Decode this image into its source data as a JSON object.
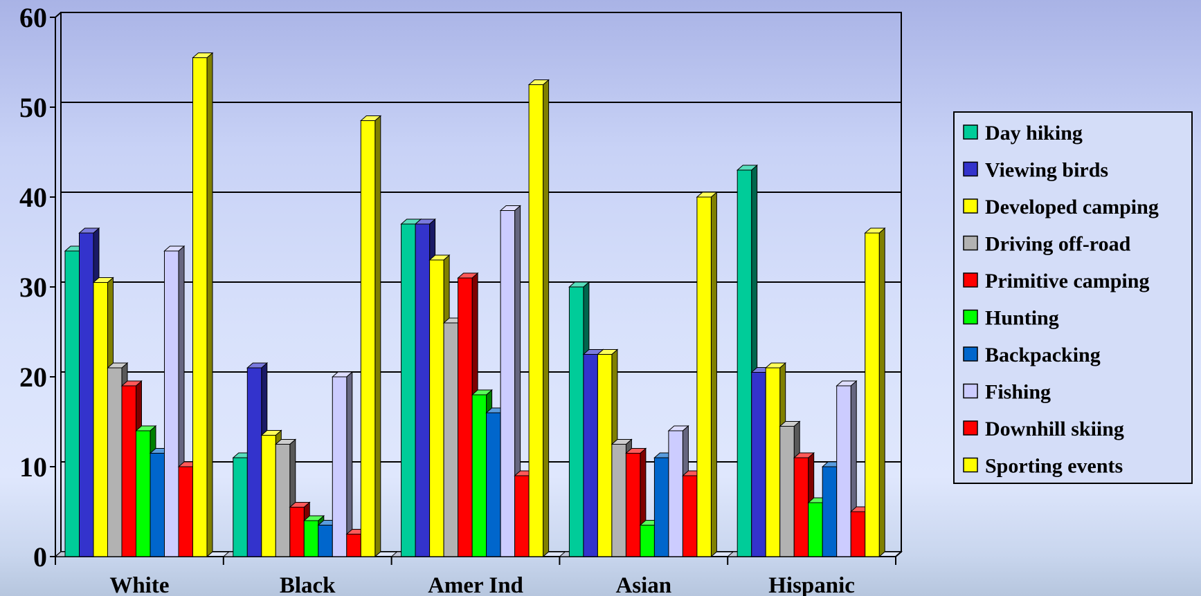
{
  "chart_data": {
    "type": "bar",
    "title": "",
    "xlabel": "",
    "ylabel": "",
    "ylim": [
      0,
      60
    ],
    "yticks": [
      0,
      10,
      20,
      30,
      40,
      50,
      60
    ],
    "grid": true,
    "legend_position": "right",
    "categories": [
      "White",
      "Black",
      "Amer Ind",
      "Asian",
      "Hispanic"
    ],
    "series": [
      {
        "name": "Day hiking",
        "color": "#00cc99",
        "values": [
          34,
          11,
          37,
          30,
          43
        ]
      },
      {
        "name": "Viewing birds",
        "color": "#3333cc",
        "values": [
          36,
          21,
          37,
          22.5,
          20.5
        ]
      },
      {
        "name": "Developed camping",
        "color": "#ffff00",
        "values": [
          30.5,
          13.5,
          33,
          22.5,
          21
        ]
      },
      {
        "name": "Driving off-road",
        "color": "#b2b2b2",
        "values": [
          21,
          12.5,
          26,
          12.5,
          14.5
        ]
      },
      {
        "name": "Primitive camping",
        "color": "#ff0000",
        "values": [
          19,
          5.5,
          31,
          11.5,
          11
        ]
      },
      {
        "name": "Hunting",
        "color": "#00ff00",
        "values": [
          14,
          4,
          18,
          3.5,
          6
        ]
      },
      {
        "name": "Backpacking",
        "color": "#0066cc",
        "values": [
          11.5,
          3.5,
          16,
          11,
          10
        ]
      },
      {
        "name": "Fishing",
        "color": "#ccccff",
        "values": [
          34,
          20,
          38.5,
          14,
          19
        ]
      },
      {
        "name": "Downhill skiing",
        "color": "#ff0000",
        "values": [
          10,
          2.5,
          9,
          9,
          5
        ]
      },
      {
        "name": "Sporting events",
        "color": "#ffff00",
        "values": [
          55.5,
          48.5,
          52.5,
          40,
          36
        ]
      }
    ]
  }
}
